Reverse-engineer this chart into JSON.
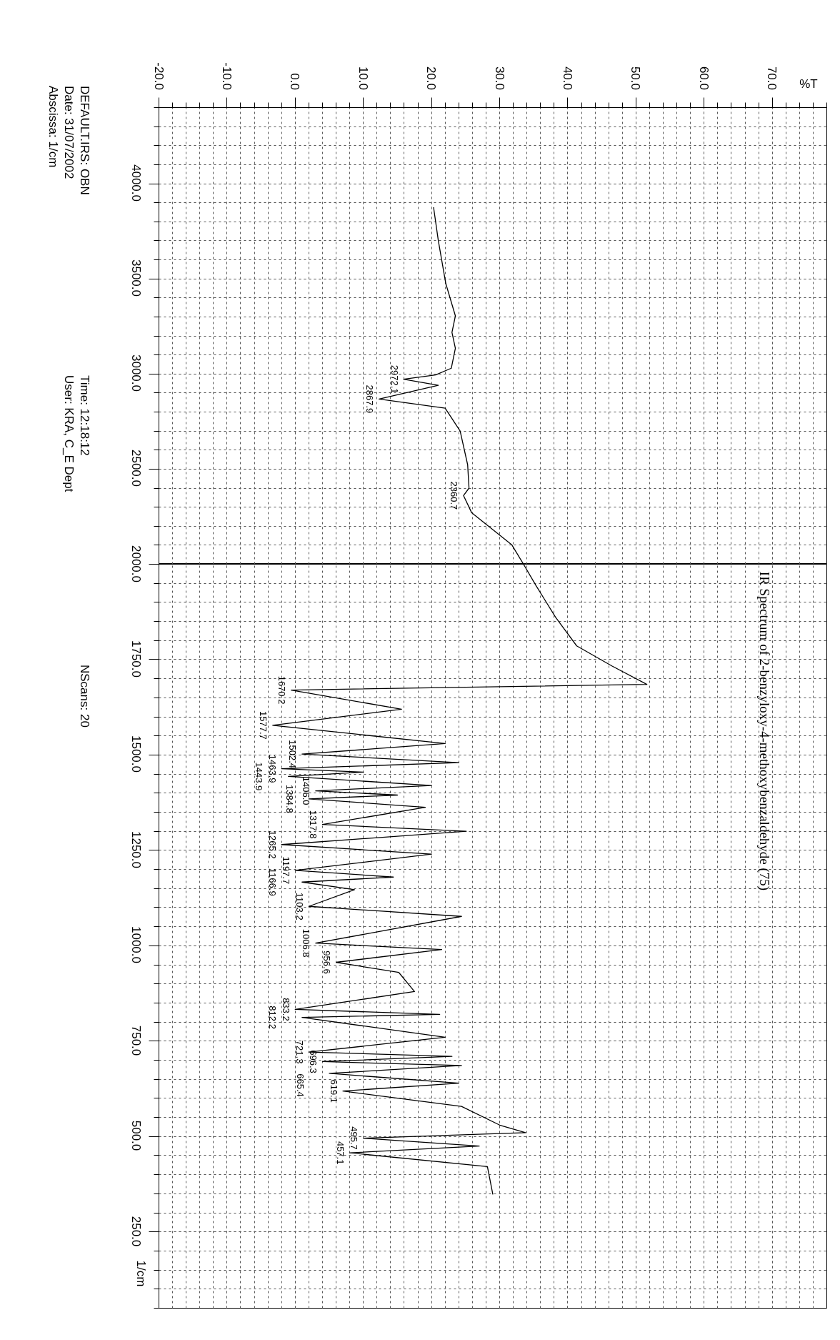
{
  "chart_data": [
    {
      "type": "line",
      "xlabel": "%T",
      "x": [
        20.3,
        21,
        22.1,
        23.5,
        23,
        23.5,
        22.9,
        20.6,
        15.9,
        21,
        12.3,
        22,
        24.2,
        25.3,
        25.5,
        24.7,
        25.9,
        31.8,
        33.5
      ],
      "series": [
        {
          "color": "#000000",
          "values": [
            3876,
            3700,
            3474,
            3305,
            3218,
            3135,
            3030,
            2995,
            2972.1,
            2940,
            2867.9,
            2820,
            2700,
            2523,
            2400,
            2360.7,
            2270,
            2101,
            2000
          ]
        }
      ],
      "xlim": [
        -20,
        78
      ],
      "xticks": [
        {
          "value": -20,
          "label": "-20.0"
        },
        {
          "value": -10,
          "label": "-10.0"
        },
        {
          "value": 0,
          "label": "0.0"
        },
        {
          "value": 10,
          "label": "10.0"
        },
        {
          "value": 20,
          "label": "20.0"
        },
        {
          "value": 30,
          "label": "30.0"
        },
        {
          "value": 40,
          "label": "40.0"
        },
        {
          "value": 50,
          "label": "50.0"
        },
        {
          "value": 60,
          "label": "60.0"
        },
        {
          "value": 70,
          "label": "70.0"
        }
      ],
      "ylim": [
        2000,
        4400
      ],
      "yticks": [
        {
          "value": 4000,
          "label": "4000.0"
        },
        {
          "value": 3500,
          "label": "3500.0"
        },
        {
          "value": 3000,
          "label": "3000.0"
        },
        {
          "value": 2500,
          "label": "2500.0"
        }
      ],
      "grid": true,
      "annotations": [
        {
          "text": "2972.1",
          "x": 15.9,
          "y": 2972.1
        },
        {
          "text": "2867.9",
          "x": 12.3,
          "y": 2867.9
        },
        {
          "text": "2360.7",
          "x": 24.7,
          "y": 2360.7
        },
        "DEFAULT.IRS: OBN",
        "Date: 31/07/2002",
        "Abscissa: 1/cm",
        "Time: 12:18:12",
        "User: KRA, C_E Dept"
      ]
    },
    {
      "type": "line",
      "title": "IR Spectrum of 2-benzyloxy-4-methoxybenzaldehyde (75)",
      "ylabel": "1/cm",
      "tick_labels": "y",
      "x": [
        33.5,
        35.3,
        38.2,
        41.3,
        46.5,
        51.6,
        -0.6,
        15.6,
        -3.3,
        22,
        1,
        24,
        -2,
        10,
        -1,
        20,
        3,
        15,
        2,
        19.1,
        4,
        25.1,
        -2,
        20,
        0,
        14.4,
        1,
        8.7,
        2,
        24.4,
        3,
        21.5,
        6,
        15.2,
        17.5,
        0,
        21.2,
        1,
        22,
        2,
        23,
        4,
        24.4,
        5,
        24,
        7,
        24.4,
        30,
        33.8,
        10,
        27,
        8,
        28.2,
        29
      ],
      "series": [
        {
          "color": "#000000",
          "values": [
            2000,
            1945,
            1861,
            1786,
            1733,
            1685,
            1670.2,
            1620,
            1577.7,
            1530,
            1502.4,
            1480,
            1463.9,
            1455,
            1443.9,
            1420,
            1406.0,
            1395,
            1384.8,
            1363,
            1317.8,
            1300,
            1265.2,
            1240,
            1197.7,
            1180,
            1166.9,
            1147,
            1103.2,
            1077,
            1006.8,
            990,
            956.6,
            930,
            880,
            833.2,
            820,
            812.2,
            760,
            721.3,
            710,
            696.3,
            686,
            665.4,
            640,
            619.1,
            579,
            530,
            510,
            495.7,
            475,
            457.1,
            421,
            348
          ]
        }
      ],
      "xlim": [
        -20,
        78
      ],
      "xticks": [
        -20,
        -10,
        0,
        10,
        20,
        30,
        40,
        50,
        60,
        70
      ],
      "ylim": [
        50,
        2000
      ],
      "yticks": [
        {
          "value": 2000,
          "label": "2000.0"
        },
        {
          "value": 1750,
          "label": "1750.0"
        },
        {
          "value": 1500,
          "label": "1500.0"
        },
        {
          "value": 1250,
          "label": "1250.0"
        },
        {
          "value": 1000,
          "label": "1000.0"
        },
        {
          "value": 750,
          "label": "750.0"
        },
        {
          "value": 500,
          "label": "500.0"
        },
        {
          "value": 250,
          "label": "250.0"
        }
      ],
      "grid": true,
      "annotations": [
        {
          "text": "1670.2",
          "x": -0.6,
          "y": 1670.2
        },
        {
          "text": "1577.7",
          "x": -3.3,
          "y": 1577.7
        },
        {
          "text": "1502.4",
          "x": 1,
          "y": 1502.4
        },
        {
          "text": "1463.9",
          "x": -2,
          "y": 1463.9
        },
        {
          "text": "1443.9",
          "x": -1,
          "y": 1443.9
        },
        {
          "text": "1406.0",
          "x": 3,
          "y": 1406.0
        },
        {
          "text": "1384.8",
          "x": 2,
          "y": 1384.8
        },
        {
          "text": "1317.8",
          "x": 4,
          "y": 1317.8
        },
        {
          "text": "1265.2",
          "x": -2,
          "y": 1265.2
        },
        {
          "text": "1197.7",
          "x": 0,
          "y": 1197.7
        },
        {
          "text": "1166.9",
          "x": 1,
          "y": 1166.9
        },
        {
          "text": "1103.2",
          "x": 2,
          "y": 1103.2
        },
        {
          "text": "1006.8",
          "x": 3,
          "y": 1006.8
        },
        {
          "text": "956.6",
          "x": 6,
          "y": 956.6
        },
        {
          "text": "833.2",
          "x": 0,
          "y": 833.2
        },
        {
          "text": "812.2",
          "x": 1,
          "y": 812.2
        },
        {
          "text": "721.3",
          "x": 2,
          "y": 721.3
        },
        {
          "text": "696.3",
          "x": 4,
          "y": 696.3
        },
        {
          "text": "665.4",
          "x": 5,
          "y": 665.4
        },
        {
          "text": "619.1",
          "x": 7,
          "y": 619.1
        },
        {
          "text": "495.7",
          "x": 10,
          "y": 495.7
        },
        {
          "text": "457.1",
          "x": 8,
          "y": 457.1
        },
        "NScans: 20"
      ]
    }
  ]
}
